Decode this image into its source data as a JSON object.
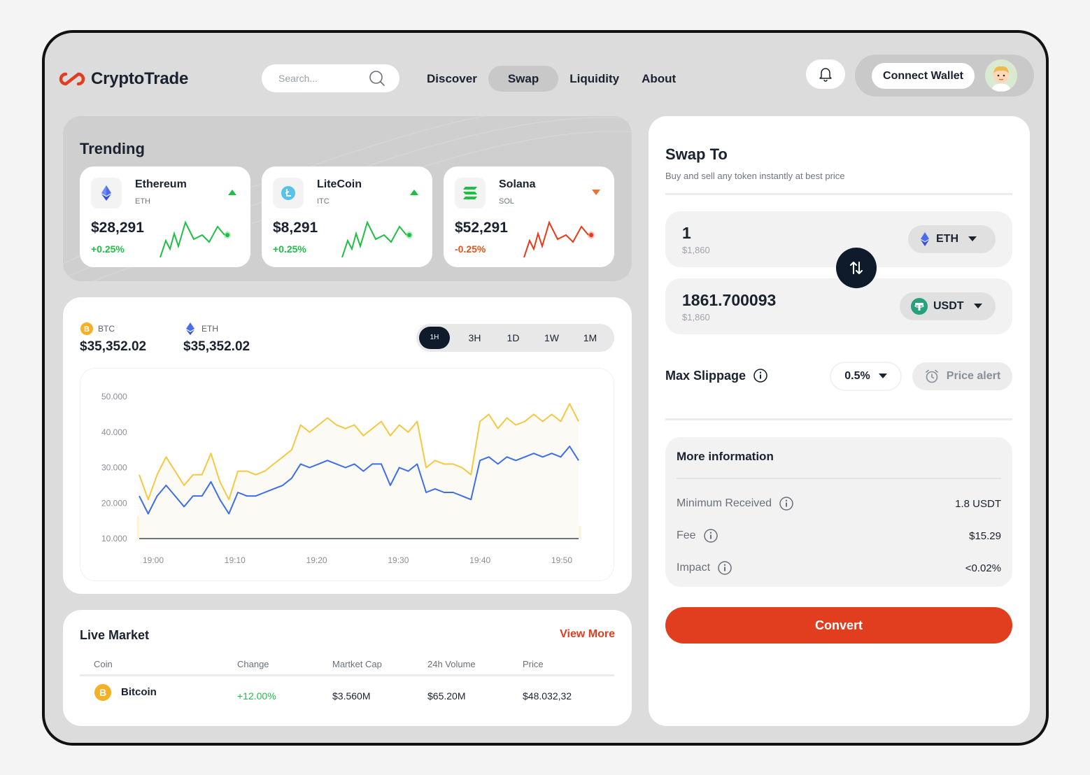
{
  "app": {
    "name": "CryptoTrade",
    "brand_color": "#e03e1f",
    "dark_color": "#0f1a2b"
  },
  "header": {
    "search_placeholder": "Search...",
    "nav": [
      {
        "label": "Discover",
        "active": false
      },
      {
        "label": "Swap",
        "active": true
      },
      {
        "label": "Liquidity",
        "active": false
      },
      {
        "label": "About",
        "active": false
      }
    ],
    "connect_wallet": "Connect Wallet",
    "icons": [
      "search-icon",
      "bell-icon",
      "avatar"
    ]
  },
  "trending": {
    "title": "Trending",
    "cards": [
      {
        "name": "Ethereum",
        "symbol": "ETH",
        "price": "$28,291",
        "change": "+0.25%",
        "direction": "up",
        "color": "#1fbf46",
        "icon": "ethereum-icon",
        "sparkline": [
          3,
          6,
          4,
          8,
          5,
          9,
          6,
          7,
          5,
          8,
          6
        ]
      },
      {
        "name": "LiteCoin",
        "symbol": "ITC",
        "price": "$8,291",
        "change": "+0.25%",
        "direction": "up",
        "color": "#1fbf46",
        "icon": "litecoin-icon",
        "sparkline": [
          3,
          6,
          4,
          8,
          5,
          9,
          6,
          7,
          5,
          8,
          6
        ]
      },
      {
        "name": "Solana",
        "symbol": "SOL",
        "price": "$52,291",
        "change": "-0.25%",
        "direction": "down",
        "color": "#e83a1a",
        "icon": "solana-icon",
        "sparkline": [
          3,
          6,
          4,
          8,
          5,
          9,
          6,
          7,
          5,
          8,
          6
        ]
      }
    ]
  },
  "chart_panel": {
    "coins": [
      {
        "label": "BTC",
        "value": "$35,352.02",
        "icon": "bitcoin-icon"
      },
      {
        "label": "ETH",
        "value": "$35,352.02",
        "icon": "ethereum-icon"
      }
    ],
    "timeframes": [
      {
        "label": "1H",
        "active": true
      },
      {
        "label": "3H",
        "active": false
      },
      {
        "label": "1D",
        "active": false
      },
      {
        "label": "1W",
        "active": false
      },
      {
        "label": "1M",
        "active": false
      }
    ]
  },
  "chart_data": {
    "type": "line",
    "y_ticks": [
      "50.000",
      "40.000",
      "30.000",
      "20.000",
      "10.000"
    ],
    "ylim": [
      10000,
      50000
    ],
    "x_ticks": [
      "19:00",
      "19:10",
      "19:20",
      "19:30",
      "19:40",
      "19:50"
    ],
    "grid": false,
    "series": [
      {
        "color": "#f5c842",
        "values": [
          28000,
          21000,
          28000,
          33000,
          29000,
          25000,
          28000,
          28000,
          34000,
          26000,
          21000,
          29000,
          29000,
          28000,
          29000,
          31000,
          33000,
          35000,
          42000,
          40000,
          42000,
          44000,
          42000,
          41000,
          42000,
          39000,
          41000,
          43000,
          39000,
          42000,
          40000,
          43000,
          30000,
          32000,
          31000,
          31000,
          30000,
          28000,
          43000,
          45000,
          41000,
          44000,
          42000,
          43000,
          45000,
          43000,
          45000,
          43000,
          48000,
          43000
        ]
      },
      {
        "color": "#3d6ee8",
        "values": [
          22000,
          17000,
          22000,
          25000,
          22000,
          19000,
          22000,
          22000,
          26000,
          21000,
          17000,
          23000,
          22000,
          22000,
          23000,
          24000,
          25000,
          27000,
          31000,
          30000,
          31000,
          32000,
          31000,
          30000,
          31000,
          29000,
          31000,
          31000,
          25000,
          30000,
          29000,
          31000,
          23000,
          24000,
          23000,
          23000,
          22000,
          21000,
          32000,
          33000,
          31000,
          33000,
          32000,
          33000,
          34000,
          33000,
          34000,
          33000,
          36000,
          32000
        ]
      }
    ],
    "volume": [
      7,
      3,
      5,
      6,
      4,
      2,
      3,
      5,
      4,
      3,
      4,
      5,
      3,
      2,
      3,
      6,
      3,
      4,
      3,
      5,
      2,
      6,
      3,
      4,
      2,
      3,
      2,
      6,
      4,
      3,
      5,
      4,
      3,
      5,
      4,
      3,
      5,
      4,
      6,
      3,
      4,
      3,
      5,
      6,
      4,
      3,
      5,
      3,
      6,
      4
    ]
  },
  "market": {
    "title": "Live Market",
    "view_more": "View More",
    "columns": [
      "Coin",
      "Change",
      "Martket Cap",
      "24h Volume",
      "Price"
    ],
    "rows": [
      {
        "coin": "Bitcoin",
        "change": "+12.00%",
        "market_cap": "$3.560M",
        "volume": "$65.20M",
        "price": "$48.032,32",
        "icon": "bitcoin-icon"
      }
    ]
  },
  "swap": {
    "title": "Swap To",
    "subtitle": "Buy and sell any token instantly at best price",
    "from": {
      "amount": "1",
      "usd": "$1,860",
      "token": "ETH",
      "icon": "ethereum-icon"
    },
    "to": {
      "amount": "1861.700093",
      "usd": "$1,860",
      "token": "USDT",
      "icon": "tether-icon"
    },
    "slippage_label": "Max Slippage",
    "slippage_value": "0.5%",
    "price_alert": "Price alert",
    "info": {
      "title": "More information",
      "rows": [
        {
          "label": "Minimum Received",
          "value": "1.8 USDT"
        },
        {
          "label": "Fee",
          "value": "$15.29"
        },
        {
          "label": "Impact",
          "value": "<0.02%"
        }
      ]
    },
    "convert": "Convert"
  }
}
